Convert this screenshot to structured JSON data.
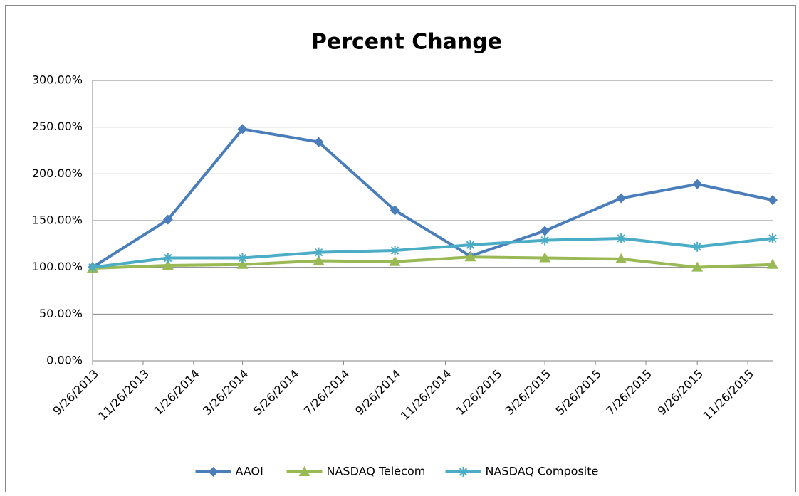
{
  "chart_data": {
    "type": "line",
    "title": "Percent Change",
    "x": [
      "2013-09-26",
      "2013-12-26",
      "2014-03-26",
      "2014-06-26",
      "2014-09-26",
      "2014-12-26",
      "2015-03-26",
      "2015-06-26",
      "2015-09-26",
      "2015-12-26"
    ],
    "xlim": [
      "2013-09-26",
      "2015-12-26"
    ],
    "xticks": [
      {
        "value": "2013-09-26",
        "label": "9/26/2013"
      },
      {
        "value": "2013-11-26",
        "label": "11/26/2013"
      },
      {
        "value": "2014-01-26",
        "label": "1/26/2014"
      },
      {
        "value": "2014-03-26",
        "label": "3/26/2014"
      },
      {
        "value": "2014-05-26",
        "label": "5/26/2014"
      },
      {
        "value": "2014-07-26",
        "label": "7/26/2014"
      },
      {
        "value": "2014-09-26",
        "label": "9/26/2014"
      },
      {
        "value": "2014-11-26",
        "label": "11/26/2014"
      },
      {
        "value": "2015-01-26",
        "label": "1/26/2015"
      },
      {
        "value": "2015-03-26",
        "label": "3/26/2015"
      },
      {
        "value": "2015-05-26",
        "label": "5/26/2015"
      },
      {
        "value": "2015-07-26",
        "label": "7/26/2015"
      },
      {
        "value": "2015-09-26",
        "label": "9/26/2015"
      },
      {
        "value": "2015-11-26",
        "label": "11/26/2015"
      }
    ],
    "ylim": [
      0,
      300
    ],
    "yticks": [
      {
        "value": 0,
        "label": "0.00%"
      },
      {
        "value": 50,
        "label": "50.00%"
      },
      {
        "value": 100,
        "label": "100.00%"
      },
      {
        "value": 150,
        "label": "150.00%"
      },
      {
        "value": 200,
        "label": "200.00%"
      },
      {
        "value": 250,
        "label": "250.00%"
      },
      {
        "value": 300,
        "label": "300.00%"
      }
    ],
    "grid": true,
    "legend": "bottom",
    "series": [
      {
        "name": "AAOI",
        "color": "#4a7ebb",
        "marker": "diamond",
        "values": [
          100,
          151,
          248,
          234,
          161,
          112,
          139,
          174,
          189,
          172
        ]
      },
      {
        "name": "NASDAQ Telecom",
        "color": "#98b954",
        "marker": "triangle",
        "values": [
          99,
          102,
          103,
          107,
          106,
          111,
          110,
          109,
          100,
          103
        ]
      },
      {
        "name": "NASDAQ Composite",
        "color": "#4bacc6",
        "marker": "asterisk",
        "values": [
          100,
          110,
          110,
          116,
          118,
          124,
          129,
          131,
          122,
          131
        ]
      }
    ]
  }
}
